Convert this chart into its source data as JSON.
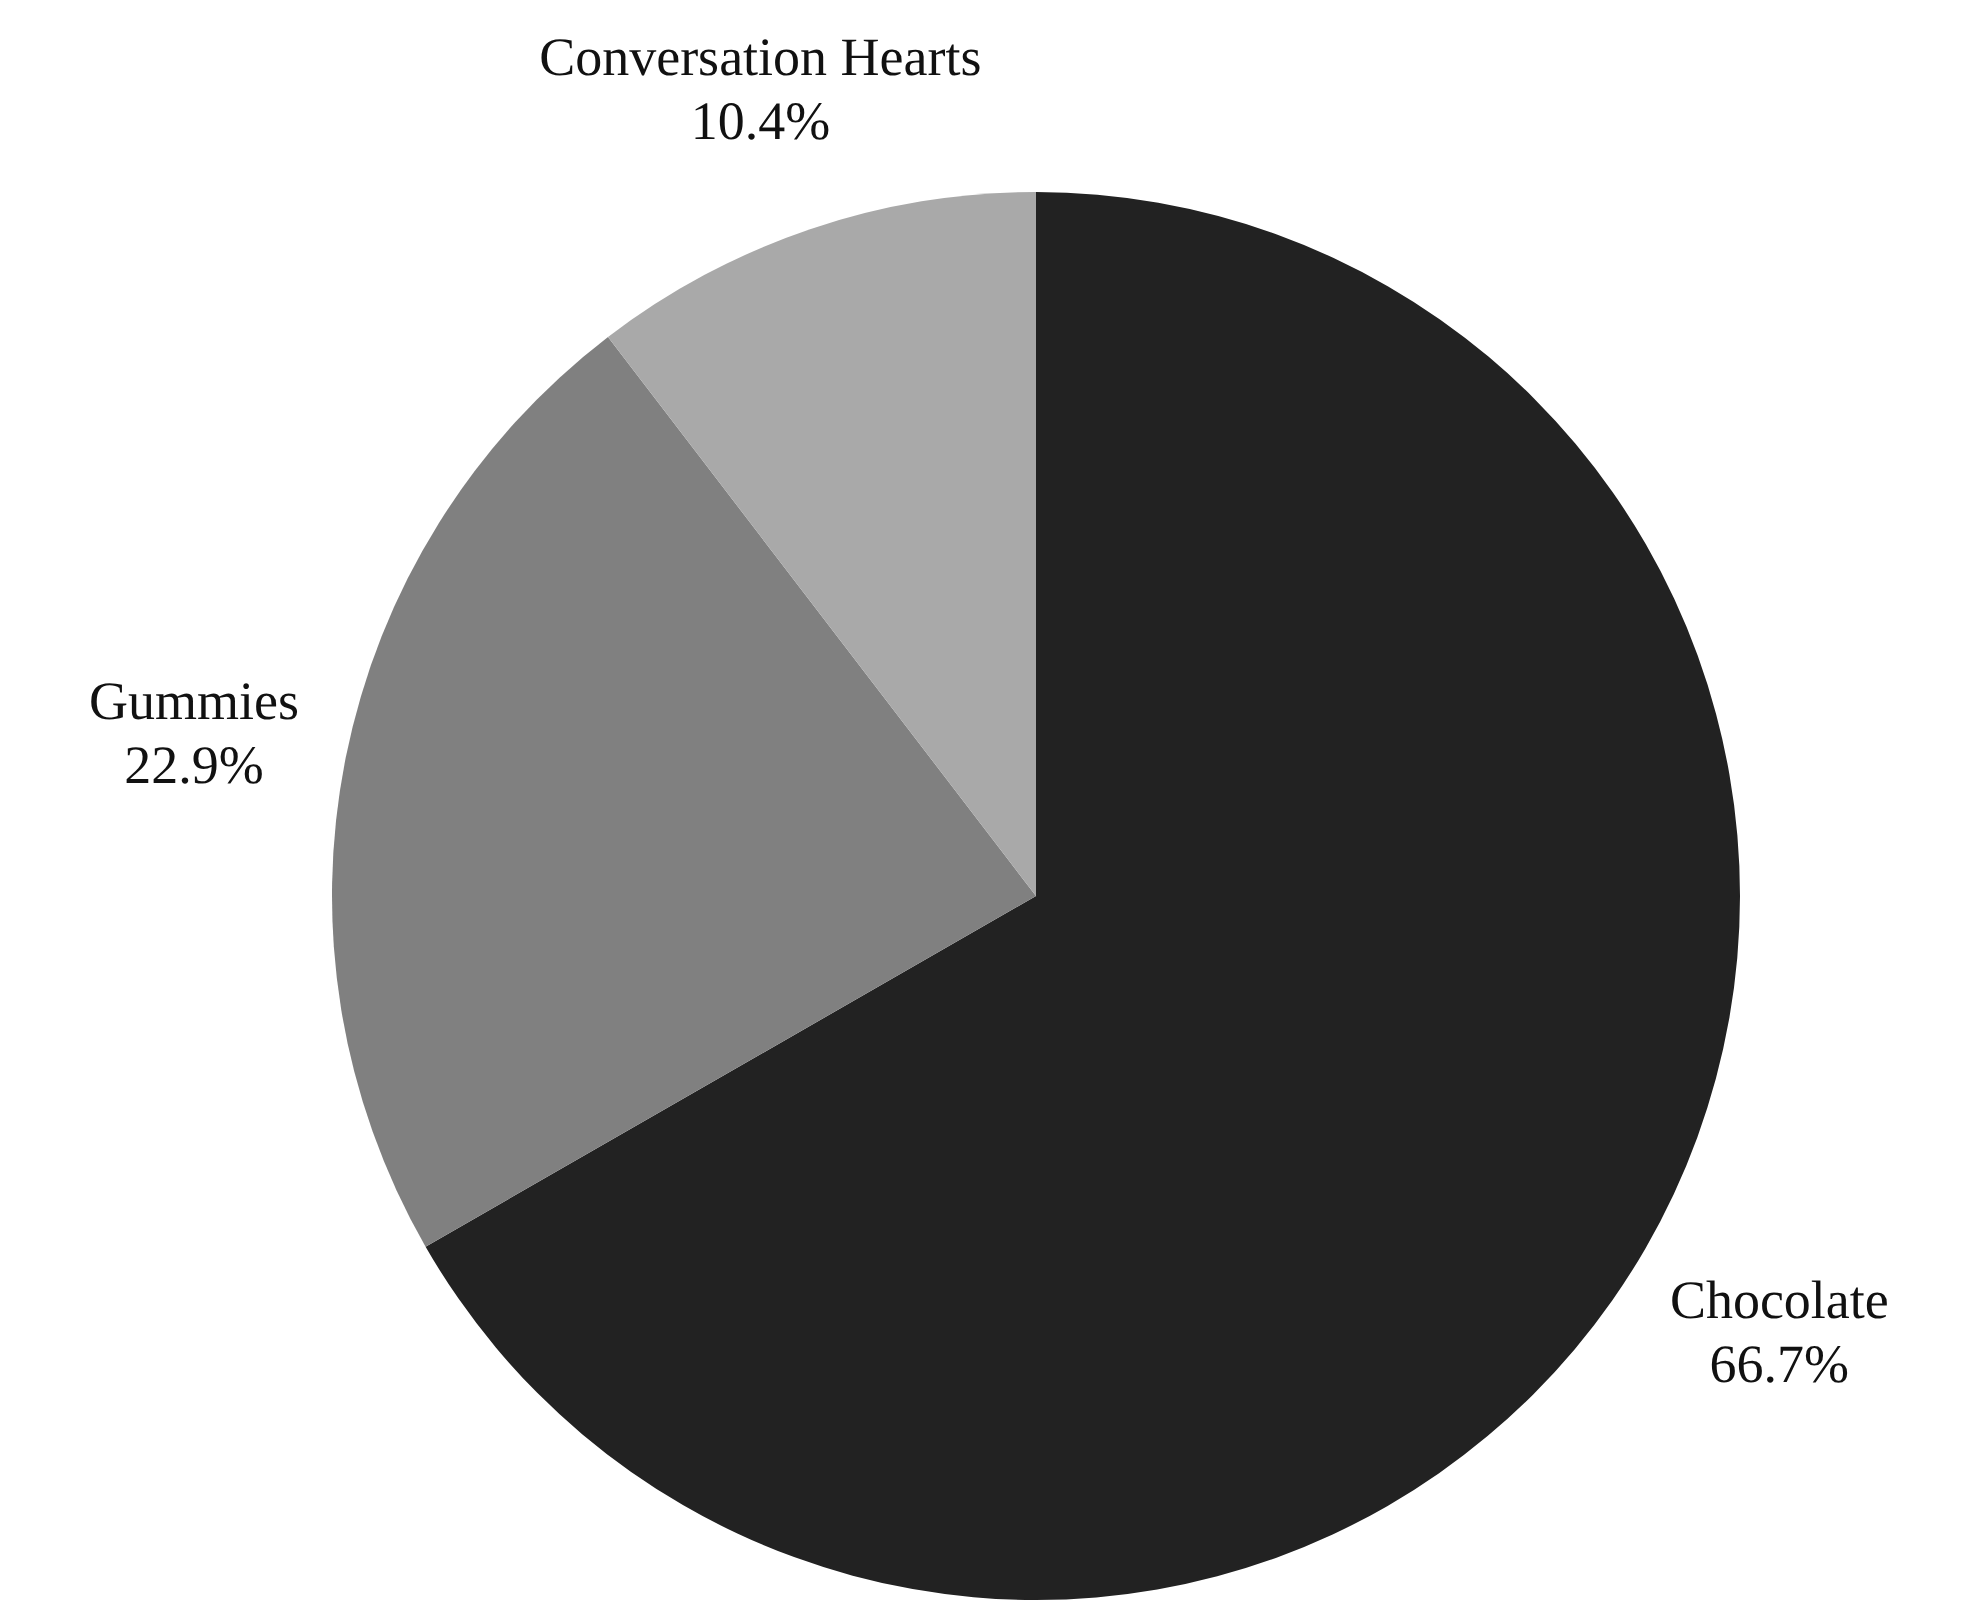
{
  "chart_data": {
    "type": "pie",
    "categories": [
      "Chocolate",
      "Gummies",
      "Conversation Hearts"
    ],
    "values": [
      66.7,
      22.9,
      10.4
    ],
    "value_labels": [
      "66.7%",
      "22.9%",
      "10.4%"
    ],
    "colors": [
      "#222222",
      "#808080",
      "#a9a9a9"
    ]
  }
}
